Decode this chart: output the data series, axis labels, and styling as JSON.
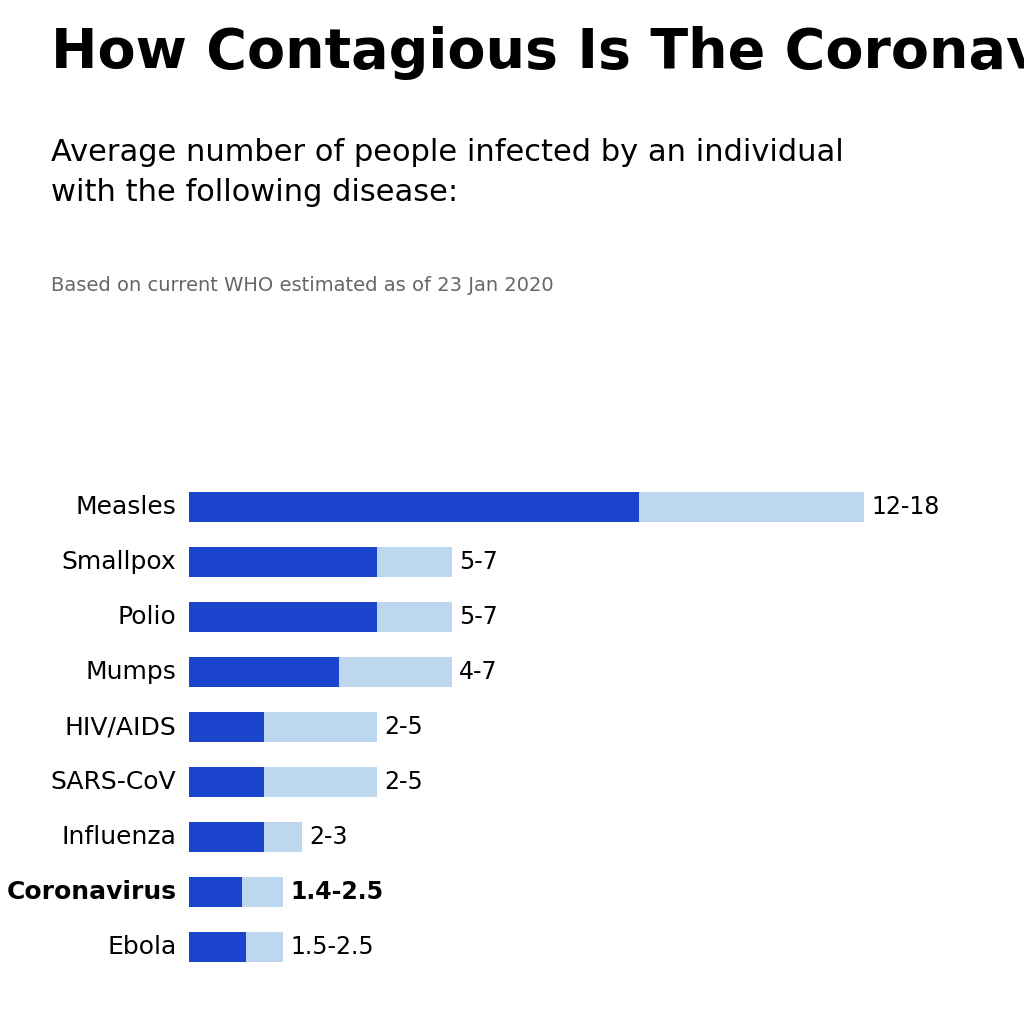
{
  "title": "How Contagious Is The Coronavirus?",
  "subtitle": "Average number of people infected by an individual\nwith the following disease:",
  "footnote": "Based on current WHO estimated as of 23 Jan 2020",
  "diseases": [
    "Measles",
    "Smallpox",
    "Polio",
    "Mumps",
    "HIV/AIDS",
    "SARS-CoV",
    "Influenza",
    "Coronavirus",
    "Ebola"
  ],
  "min_values": [
    12,
    5,
    5,
    4,
    2,
    2,
    2,
    1.4,
    1.5
  ],
  "max_values": [
    18,
    7,
    7,
    7,
    5,
    5,
    3,
    2.5,
    2.5
  ],
  "labels": [
    "12-18",
    "5-7",
    "5-7",
    "4-7",
    "2-5",
    "2-5",
    "2-3",
    "1.4-2.5",
    "1.5-2.5"
  ],
  "bold_index": 7,
  "dark_blue": "#1A44CC",
  "light_blue": "#BDD7EE",
  "background_color": "#FFFFFF",
  "text_color": "#000000",
  "title_fontsize": 40,
  "subtitle_fontsize": 22,
  "footnote_fontsize": 14,
  "label_fontsize": 17,
  "tick_fontsize": 18
}
